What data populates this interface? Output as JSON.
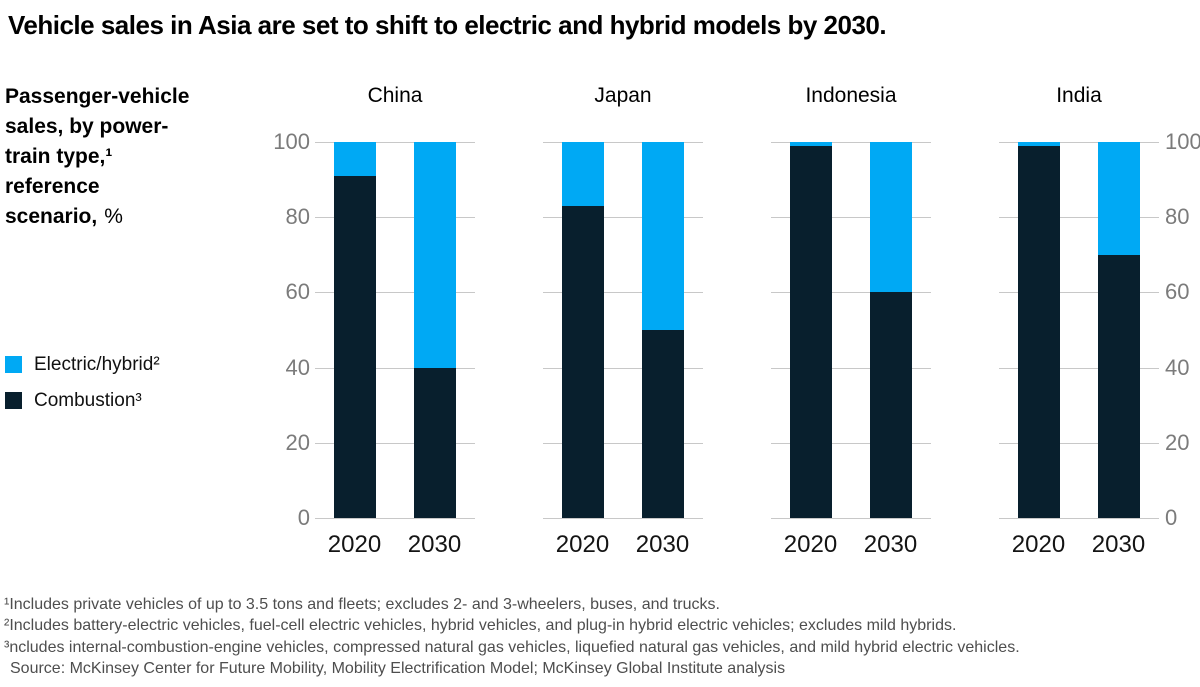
{
  "title": "Vehicle sales in Asia are set to shift to electric and hybrid models by 2030.",
  "heading": {
    "lines": [
      "Passenger-vehicle",
      "sales, by power-",
      "train type,¹",
      "reference"
    ],
    "last_line": {
      "bold": "scenario,",
      "unit": "%"
    }
  },
  "legend": [
    {
      "key": "electric",
      "label": "Electric/hybrid²",
      "color": "#00A9F4"
    },
    {
      "key": "combustion",
      "label": "Combustion³",
      "color": "#081F2D"
    }
  ],
  "colors": {
    "electric": "#00A9F4",
    "combustion": "#081F2D",
    "grid": "#C8C8C8",
    "tick_label": "#7B7B7B",
    "footnote": "#4E4E4E"
  },
  "chart_data": {
    "type": "bar",
    "stacked": true,
    "unit": "%",
    "title": "Passenger-vehicle sales, by power-train type, reference scenario, %",
    "categories": [
      "2020",
      "2030"
    ],
    "yticks": [
      0,
      20,
      40,
      60,
      80,
      100
    ],
    "ylim": [
      0,
      100
    ],
    "grid": true,
    "legend_position": "left",
    "series_names": [
      "Electric/hybrid²",
      "Combustion³"
    ],
    "panels": [
      {
        "name": "China",
        "bars": [
          {
            "year": "2020",
            "combustion": 91,
            "electric": 9
          },
          {
            "year": "2030",
            "combustion": 40,
            "electric": 60
          }
        ]
      },
      {
        "name": "Japan",
        "bars": [
          {
            "year": "2020",
            "combustion": 83,
            "electric": 17
          },
          {
            "year": "2030",
            "combustion": 50,
            "electric": 50
          }
        ]
      },
      {
        "name": "Indonesia",
        "bars": [
          {
            "year": "2020",
            "combustion": 99,
            "electric": 1
          },
          {
            "year": "2030",
            "combustion": 60,
            "electric": 40
          }
        ]
      },
      {
        "name": "India",
        "bars": [
          {
            "year": "2020",
            "combustion": 99,
            "electric": 1
          },
          {
            "year": "2030",
            "combustion": 70,
            "electric": 30
          }
        ]
      }
    ]
  },
  "footnotes": [
    "¹Includes private vehicles of up to 3.5 tons and fleets; excludes 2- and 3-wheelers, buses, and trucks.",
    "²Includes battery-electric vehicles, fuel-cell electric vehicles, hybrid vehicles, and plug-in hybrid electric vehicles; excludes mild hybrids.",
    "³ncludes internal-combustion-engine vehicles, compressed natural gas vehicles, liquefied natural gas vehicles, and mild hybrid electric vehicles.",
    "Source: McKinsey Center for Future Mobility, Mobility Electrification Model; McKinsey Global Institute analysis"
  ]
}
